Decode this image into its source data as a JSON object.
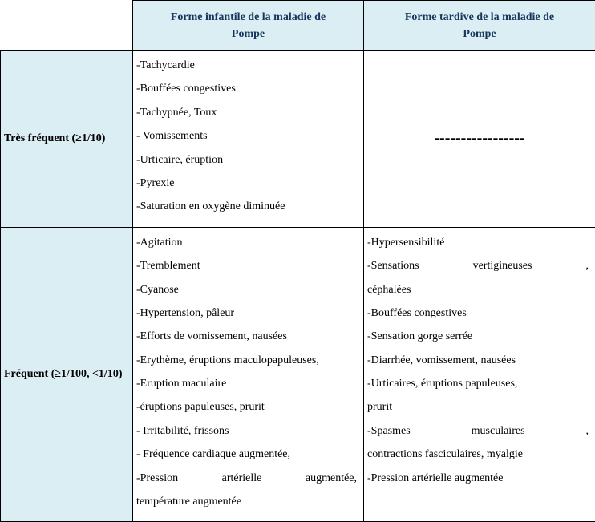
{
  "headers": {
    "col1_line1": "Forme infantile de la maladie de",
    "col1_line2": "Pompe",
    "col2_line1": "Forme tardive de la maladie de",
    "col2_line2": "Pompe"
  },
  "rows": {
    "tres_frequent": {
      "label": "Très fréquent (≥1/10)",
      "infantile": [
        "-Tachycardie",
        " -Bouffées congestives",
        "-Tachypnée, Toux",
        "- Vomissements",
        " -Urticaire, éruption",
        "-Pyrexie",
        "-Saturation en oxygène diminuée"
      ],
      "tardive_dash": "-----------------"
    },
    "frequent": {
      "label": "Fréquent (≥1/100, <1/10)",
      "infantile": [
        "-Agitation",
        " -Tremblement",
        " -Cyanose",
        " -Hypertension, pâleur",
        " -Efforts de vomissement, nausées",
        "-Erythème, éruptions maculopapuleuses,",
        " -Eruption maculaire",
        "-éruptions papuleuses, prurit",
        "- Irritabilité, frissons",
        "- Fréquence cardiaque augmentée,"
      ],
      "infantile_j1a": "-Pression",
      "infantile_j1b": "artérielle",
      "infantile_j1c": "augmentée,",
      "infantile_last": "température augmentée",
      "tardive_simple": [
        "-Hypersensibilité"
      ],
      "tardive_j1a": "-Sensations",
      "tardive_j1b": "vertigineuses",
      "tardive_j1c": ",",
      "tardive_after1": "céphalées",
      "tardive_mid": [
        "-Bouffées congestives",
        "-Sensation gorge serrée",
        "-Diarrhée, vomissement, nausées",
        "-Urticaires,  éruptions  papuleuses,",
        "prurit"
      ],
      "tardive_j2a": "-Spasmes",
      "tardive_j2b": "musculaires",
      "tardive_j2c": ",",
      "tardive_after2": "contractions fasciculaires, myalgie",
      "tardive_last": "-Pression artérielle augmentée"
    }
  }
}
